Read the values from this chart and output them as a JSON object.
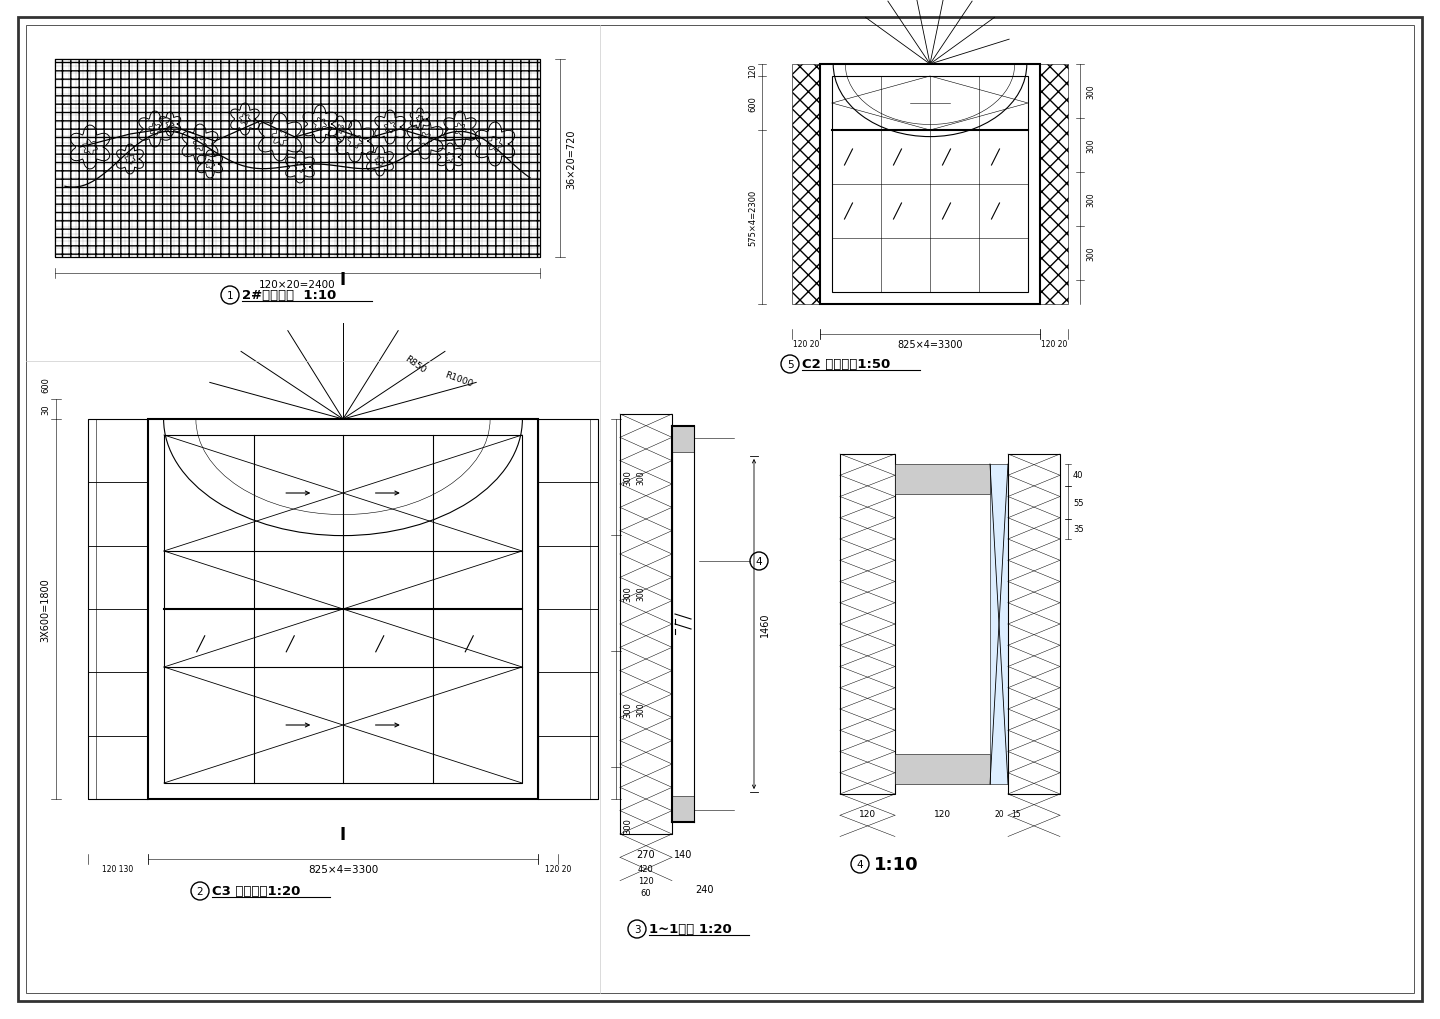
{
  "bg": "#ffffff",
  "lc": "#000000",
  "hatch_gray": "#e8e8e8",
  "wall_gray": "#cccccc",
  "titles": {
    "t1": "2#浮雕大样  1:10",
    "t2": "C3 立面大样1:20",
    "t3": "1~1剖面 1:20",
    "t4": "1:10",
    "t5": "C2 立面大样1:50"
  },
  "dims": {
    "hatch_w": "120×20=2400",
    "hatch_h": "36×20=720",
    "c3_bot": "825×4=3300",
    "c3_left": "3X600=1800",
    "c2_bot": "825×4=3300",
    "c2_left": "575×4=2300",
    "sec3_v": "1460",
    "sec3_h1": "270",
    "sec3_h2": "140",
    "sec3_bot": "240",
    "r850": "R850",
    "r1000": "R1000"
  }
}
